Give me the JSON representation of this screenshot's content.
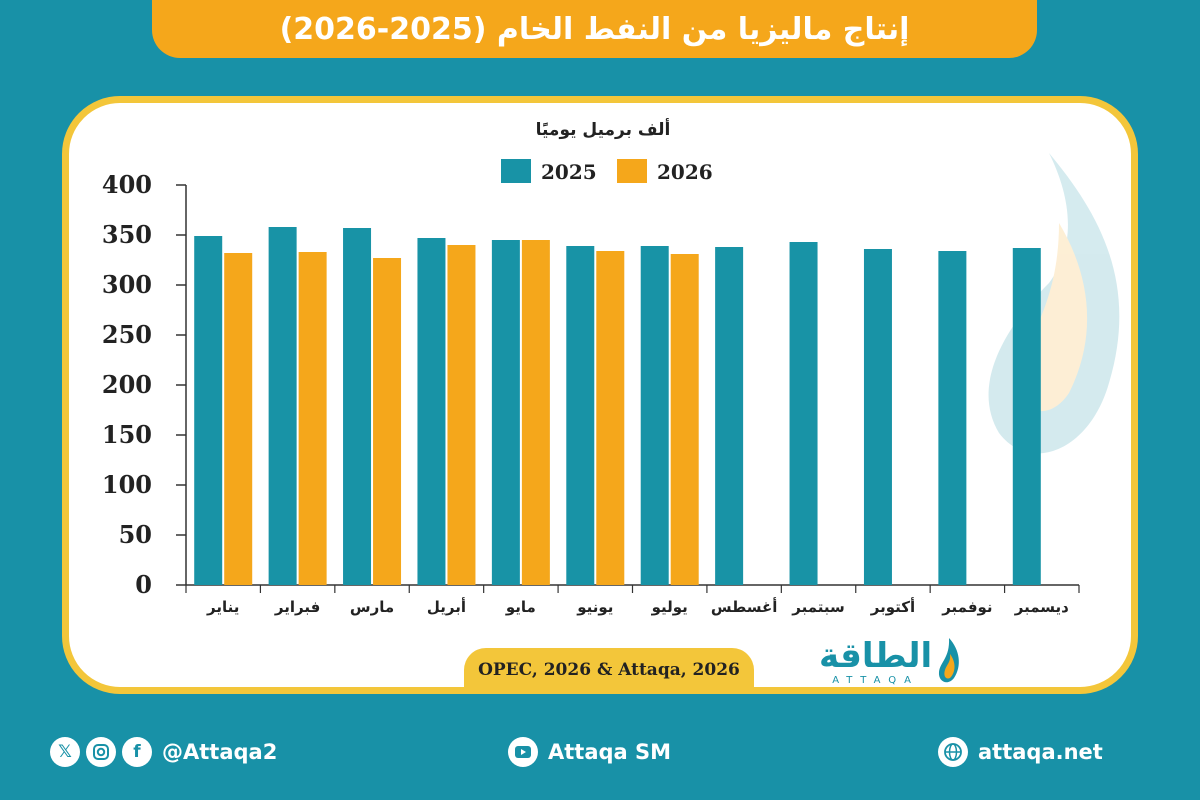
{
  "title": "إنتاج ماليزيا من النفط الخام (2025-2026)",
  "source": "OPEC, 2026 & Attaqa, 2026",
  "logo": {
    "arabic": "الطاقة",
    "english": "ATTAQA"
  },
  "footer": {
    "social_handle": "@Attaqa2",
    "youtube": "Attaqa SM",
    "website": "attaqa.net"
  },
  "colors": {
    "background": "#1891a7",
    "series_2025": "#1893a6",
    "series_2026": "#f5a71b",
    "frame": "#f3c63a"
  },
  "chart_data": {
    "type": "bar",
    "unit_label": "ألف برميل يوميًا",
    "categories": [
      "يناير",
      "فبراير",
      "مارس",
      "أبريل",
      "مايو",
      "يونيو",
      "يوليو",
      "أغسطس",
      "سبتمبر",
      "أكتوبر",
      "نوفمبر",
      "ديسمبر"
    ],
    "series": [
      {
        "name": "2025",
        "values": [
          349,
          358,
          357,
          347,
          345,
          339,
          339,
          338,
          343,
          336,
          334,
          337
        ]
      },
      {
        "name": "2026",
        "values": [
          332,
          333,
          327,
          340,
          345,
          334,
          331,
          null,
          null,
          null,
          null,
          null
        ]
      }
    ],
    "yticks": [
      0,
      50,
      100,
      150,
      200,
      250,
      300,
      350,
      400
    ],
    "ylim": [
      0,
      400
    ],
    "grid": false,
    "legend_position": "top-center"
  }
}
